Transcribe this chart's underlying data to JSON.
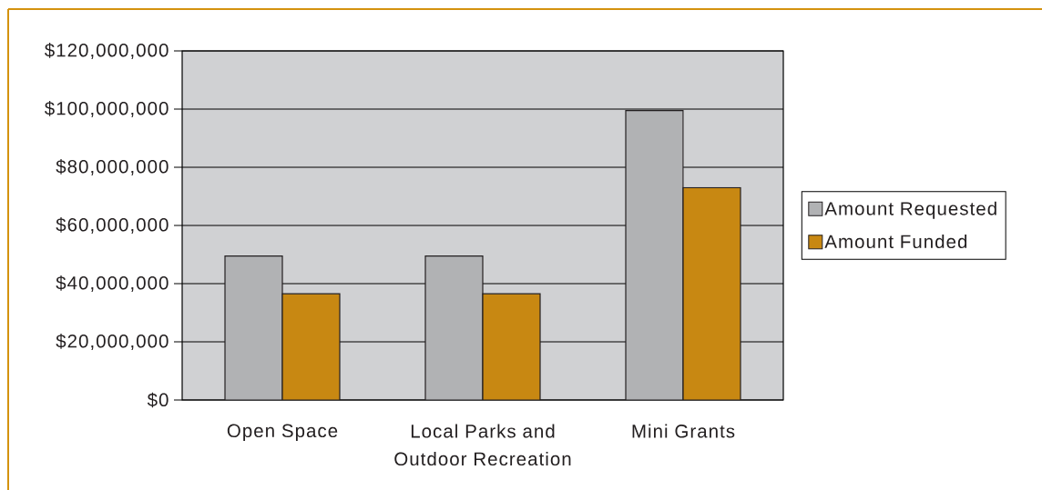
{
  "chart_data": {
    "type": "bar",
    "categories": [
      "Open Space",
      "Local Parks and Outdoor Recreation",
      "Mini Grants"
    ],
    "series": [
      {
        "name": "Amount Requested",
        "color": "#b1b2b4",
        "values": [
          49500000,
          49500000,
          99500000
        ]
      },
      {
        "name": "Amount Funded",
        "color": "#c88812",
        "values": [
          36500000,
          36500000,
          73000000
        ]
      }
    ],
    "ylim": [
      0,
      120000000
    ],
    "yticks": [
      {
        "value": 0,
        "label": "$0"
      },
      {
        "value": 20000000,
        "label": "$20,000,000"
      },
      {
        "value": 40000000,
        "label": "$40,000,000"
      },
      {
        "value": 60000000,
        "label": "$60,000,000"
      },
      {
        "value": 80000000,
        "label": "$80,000,000"
      },
      {
        "value": 100000000,
        "label": "$100,000,000"
      },
      {
        "value": 120000000,
        "label": "$120,000,000"
      }
    ],
    "grid": "y",
    "legend": "right"
  }
}
